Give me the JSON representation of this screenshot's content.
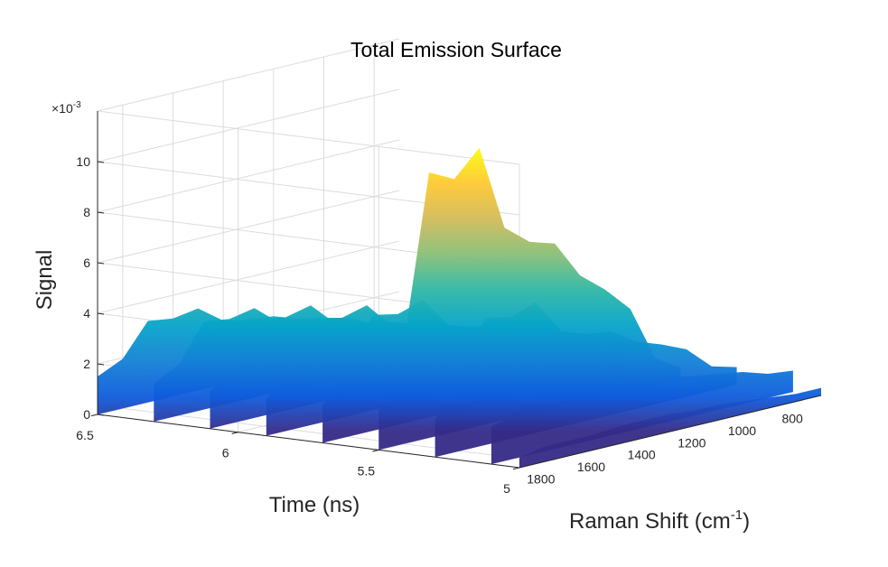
{
  "chart_data": {
    "type": "surface",
    "title": "Total Emission Surface",
    "xlabel": "Time (ns)",
    "ylabel": "Raman Shift (cm",
    "ylabel_sup": "-1",
    "ylabel_end": ")",
    "zlabel": "Signal",
    "z_exponent_base": "×10",
    "z_exponent_power": "-3",
    "time_ticks": [
      "6.5",
      "6",
      "5.5",
      "5"
    ],
    "time_tick_values": [
      6.5,
      6.0,
      5.5,
      5.0
    ],
    "raman_ticks": [
      "1800",
      "1600",
      "1400",
      "1200",
      "1000",
      "800"
    ],
    "raman_tick_values": [
      1800,
      1600,
      1400,
      1200,
      1000,
      800
    ],
    "signal_ticks": [
      "0",
      "2",
      "4",
      "6",
      "8",
      "10"
    ],
    "signal_tick_values": [
      0,
      2,
      4,
      6,
      8,
      10
    ],
    "xlim": [
      5.0,
      6.5
    ],
    "ylim": [
      700,
      1900
    ],
    "zlim": [
      0,
      12
    ],
    "grid": true,
    "colormap": [
      "#352a87",
      "#0f5cdd",
      "#1481d6",
      "#06a4ca",
      "#2eb7a4",
      "#87bf77",
      "#d1bb59",
      "#fec832",
      "#f9fb0e"
    ],
    "raman_shift": [
      1900,
      1800,
      1700,
      1600,
      1500,
      1400,
      1300,
      1200,
      1100,
      1000,
      900,
      800,
      700
    ],
    "edge_profile_at_5ns": [
      0.4,
      0.6,
      0.6,
      0.6,
      0.7,
      0.7,
      0.7,
      0.6,
      0.6,
      0.5,
      0.4,
      0.3,
      0.3
    ],
    "time_ns": [
      6.5,
      6.3,
      6.1,
      5.9,
      5.7,
      5.5,
      5.3,
      5.1,
      5.0
    ],
    "time_profile": [
      0.2,
      0.23,
      0.27,
      0.3,
      0.35,
      1.0,
      0.4,
      0.12,
      0.05
    ],
    "ridge_profile": [
      1.5,
      4.0,
      10.5,
      10.0,
      11.0,
      7.6,
      6.8,
      6.5,
      5.0,
      4.2,
      3.2,
      1.0,
      0.4
    ]
  }
}
